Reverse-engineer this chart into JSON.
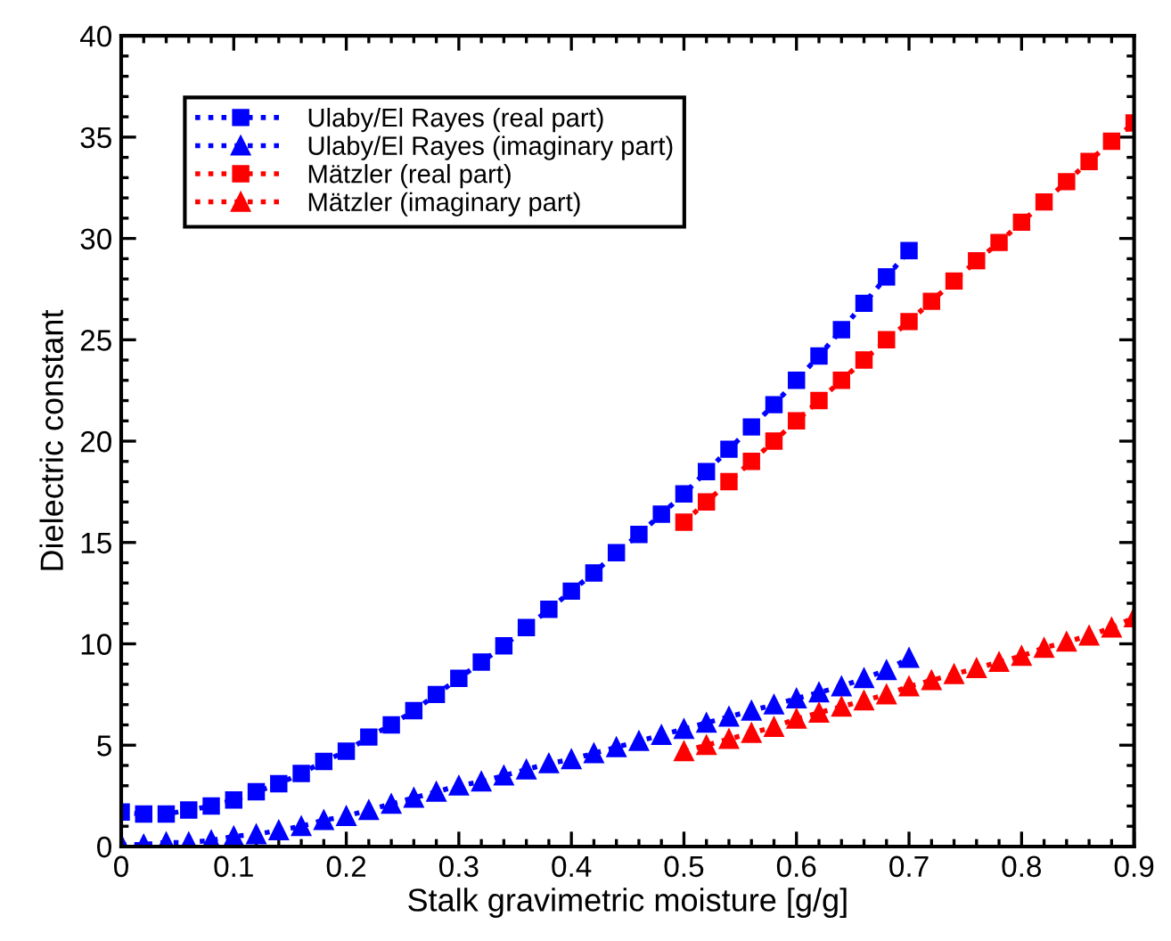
{
  "chart_data": {
    "type": "line",
    "xlabel": "Stalk gravimetric moisture [g/g]",
    "ylabel": "Dielectric constant",
    "xlim": [
      0,
      0.9
    ],
    "ylim": [
      0,
      40
    ],
    "xticks": [
      0,
      0.1,
      0.2,
      0.3,
      0.4,
      0.5,
      0.6,
      0.7,
      0.8,
      0.9
    ],
    "yticks": [
      0,
      5,
      10,
      15,
      20,
      25,
      30,
      35,
      40
    ],
    "legend": "top left",
    "line_style": "dotted",
    "grid": false,
    "series": [
      {
        "name": "Ulaby/El Rayes (real part)",
        "color": "#0000ff",
        "marker": "square",
        "x": [
          0,
          0.02,
          0.04,
          0.06,
          0.08,
          0.1,
          0.12,
          0.14,
          0.16,
          0.18,
          0.2,
          0.22,
          0.24,
          0.26,
          0.28,
          0.3,
          0.32,
          0.34,
          0.36,
          0.38,
          0.4,
          0.42,
          0.44,
          0.46,
          0.48,
          0.5,
          0.52,
          0.54,
          0.56,
          0.58,
          0.6,
          0.62,
          0.64,
          0.66,
          0.68,
          0.7
        ],
        "values": [
          1.7,
          1.6,
          1.6,
          1.8,
          2.0,
          2.3,
          2.7,
          3.1,
          3.6,
          4.2,
          4.7,
          5.4,
          6.0,
          6.7,
          7.5,
          8.3,
          9.1,
          9.9,
          10.8,
          11.7,
          12.6,
          13.5,
          14.5,
          15.4,
          16.4,
          17.4,
          18.5,
          19.6,
          20.7,
          21.8,
          23.0,
          24.2,
          25.5,
          26.8,
          28.1,
          29.4
        ]
      },
      {
        "name": "Ulaby/El Rayes (imaginary part)",
        "color": "#0000ff",
        "marker": "triangle",
        "x": [
          0,
          0.02,
          0.04,
          0.06,
          0.08,
          0.1,
          0.12,
          0.14,
          0.16,
          0.18,
          0.2,
          0.22,
          0.24,
          0.26,
          0.28,
          0.3,
          0.32,
          0.34,
          0.36,
          0.38,
          0.4,
          0.42,
          0.44,
          0.46,
          0.48,
          0.5,
          0.52,
          0.54,
          0.56,
          0.58,
          0.6,
          0.62,
          0.64,
          0.66,
          0.68,
          0.7
        ],
        "values": [
          0.1,
          0.1,
          0.2,
          0.2,
          0.3,
          0.5,
          0.6,
          0.8,
          1.0,
          1.3,
          1.5,
          1.8,
          2.1,
          2.4,
          2.7,
          3.0,
          3.2,
          3.5,
          3.8,
          4.1,
          4.3,
          4.6,
          4.9,
          5.2,
          5.5,
          5.8,
          6.1,
          6.4,
          6.7,
          7.0,
          7.3,
          7.6,
          7.9,
          8.3,
          8.7,
          9.3
        ]
      },
      {
        "name": "Mätzler (real part)",
        "color": "#ff0000",
        "marker": "square",
        "x": [
          0.5,
          0.52,
          0.54,
          0.56,
          0.58,
          0.6,
          0.62,
          0.64,
          0.66,
          0.68,
          0.7,
          0.72,
          0.74,
          0.76,
          0.78,
          0.8,
          0.82,
          0.84,
          0.86,
          0.88,
          0.9
        ],
        "values": [
          16.0,
          17.0,
          18.0,
          19.0,
          20.0,
          21.0,
          22.0,
          23.0,
          24.0,
          25.0,
          25.9,
          26.9,
          27.9,
          28.9,
          29.8,
          30.8,
          31.8,
          32.8,
          33.8,
          34.8,
          35.7
        ]
      },
      {
        "name": "Mätzler (imaginary part)",
        "color": "#ff0000",
        "marker": "triangle",
        "x": [
          0.5,
          0.52,
          0.54,
          0.56,
          0.58,
          0.6,
          0.62,
          0.64,
          0.66,
          0.68,
          0.7,
          0.72,
          0.74,
          0.76,
          0.78,
          0.8,
          0.82,
          0.84,
          0.86,
          0.88,
          0.9
        ],
        "values": [
          4.7,
          5.0,
          5.3,
          5.6,
          5.9,
          6.3,
          6.6,
          6.9,
          7.2,
          7.5,
          7.9,
          8.2,
          8.5,
          8.8,
          9.1,
          9.4,
          9.8,
          10.1,
          10.4,
          10.8,
          11.3
        ]
      }
    ]
  }
}
